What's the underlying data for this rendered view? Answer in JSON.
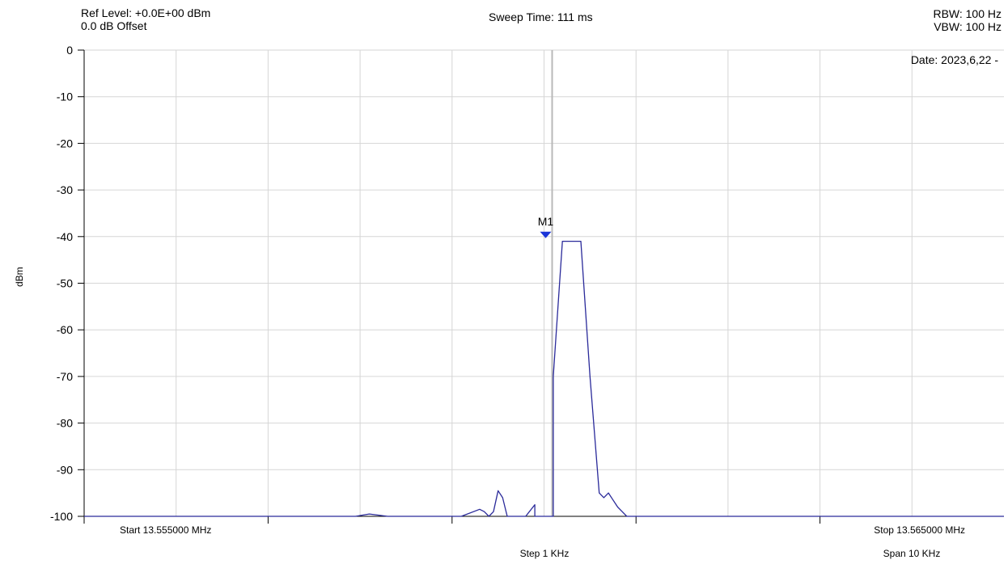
{
  "header": {
    "ref_level": "Ref Level: +0.0E+00 dBm",
    "offset": "0.0 dB Offset",
    "sweep_time": "Sweep Time: 111 ms",
    "rbw": "RBW: 100 Hz",
    "vbw": "VBW: 100 Hz",
    "date": "Date: 2023,6,22 -"
  },
  "footer": {
    "start": "Start 13.555000 MHz",
    "stop": "Stop 13.565000 MHz",
    "step": "Step 1 KHz",
    "span": "Span 10 KHz"
  },
  "chart_data": {
    "type": "line",
    "ylabel": "dBm",
    "ylim": [
      -100,
      0
    ],
    "xlim": [
      13.555,
      13.565
    ],
    "x_unit": "MHz",
    "yticks": [
      0,
      -10,
      -20,
      -30,
      -40,
      -50,
      -60,
      -70,
      -80,
      -90,
      -100
    ],
    "grid": true,
    "trace_color": "#2a2a9a",
    "marker_color": "#1a35d8",
    "center_line_color": "#b8b8b8",
    "marker": {
      "label": "M1",
      "x": 13.56,
      "y": -40
    },
    "series": [
      {
        "x": [
          13.555,
          13.5565,
          13.5575,
          13.55795,
          13.5581,
          13.5583,
          13.5589,
          13.5591,
          13.5593,
          13.55935,
          13.5594,
          13.55945,
          13.5595,
          13.55955,
          13.5596,
          13.5598,
          13.5599,
          13.5599,
          13.56,
          13.5601,
          13.5601,
          13.5602,
          13.5604,
          13.5605,
          13.5606,
          13.56065,
          13.5607,
          13.56075,
          13.5608,
          13.56085,
          13.5609,
          13.565
        ],
        "y": [
          -100,
          -100,
          -100,
          -100,
          -99.5,
          -100,
          -100,
          -100,
          -98.5,
          -99,
          -100,
          -99,
          -94.5,
          -96,
          -100,
          -100,
          -97.5,
          -100,
          -100,
          -100,
          -70,
          -41,
          -41,
          -70,
          -95,
          -96,
          -95,
          -96.5,
          -98,
          -99,
          -100,
          -100
        ]
      }
    ]
  }
}
